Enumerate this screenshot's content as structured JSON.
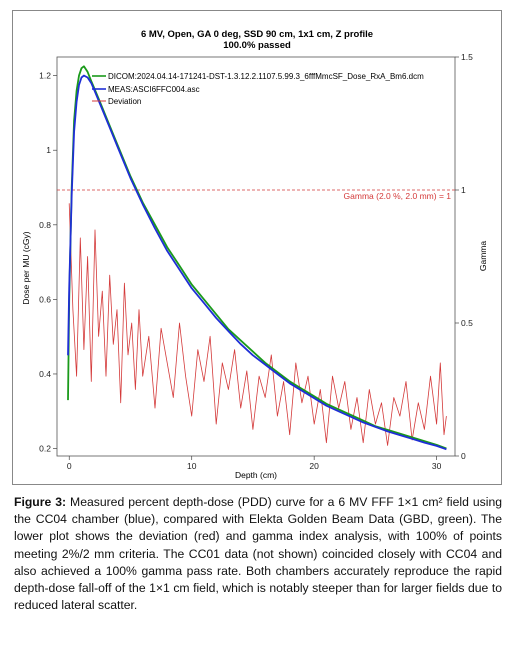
{
  "chart_data": {
    "type": "line",
    "title": "6 MV, Open, GA 0 deg, SSD 90 cm, 1x1 cm, Z profile",
    "subtitle": "100.0% passed",
    "xlabel": "Depth (cm)",
    "ylabel": "Dose per MU (cGy)",
    "y2label": "Gamma",
    "xlim": [
      -1,
      31.5
    ],
    "ylim": [
      0.18,
      1.25
    ],
    "y2lim": [
      0,
      1.5
    ],
    "xticks": [
      "0",
      "10",
      "20",
      "30"
    ],
    "yticks": [
      "0.2",
      "0.4",
      "0.6",
      "0.8",
      "1",
      "1.2"
    ],
    "y2ticks": [
      "0",
      "0.5",
      "1",
      "1.5"
    ],
    "grid": false,
    "legend_position": "top-left",
    "series": [
      {
        "name": "DICOM:2024.04.14-171241-DST-1.3.12.2.1107.5.99.3_6fffMmcSF_Dose_RxA_Bm6.dcm",
        "color": "#1a9a1a",
        "axis": "left",
        "x": [
          -0.1,
          0.0,
          0.2,
          0.4,
          0.6,
          0.8,
          1.0,
          1.2,
          1.5,
          1.8,
          2.0,
          2.5,
          3.0,
          3.5,
          4.0,
          5.0,
          6.0,
          7.0,
          8.0,
          9.0,
          10.0,
          11.0,
          12.0,
          13.0,
          14.0,
          15.0,
          16.0,
          17.0,
          18.0,
          19.0,
          20.0,
          21.0,
          22.0,
          23.0,
          24.0,
          25.0,
          26.0,
          27.0,
          28.0,
          29.0,
          30.0,
          30.8
        ],
        "y": [
          0.33,
          0.6,
          0.9,
          1.08,
          1.16,
          1.2,
          1.22,
          1.225,
          1.21,
          1.185,
          1.17,
          1.13,
          1.09,
          1.05,
          1.01,
          0.93,
          0.86,
          0.8,
          0.74,
          0.69,
          0.64,
          0.6,
          0.56,
          0.52,
          0.49,
          0.46,
          0.43,
          0.405,
          0.38,
          0.36,
          0.34,
          0.32,
          0.305,
          0.29,
          0.275,
          0.26,
          0.25,
          0.24,
          0.23,
          0.22,
          0.21,
          0.2
        ]
      },
      {
        "name": "MEAS:ASCI6FFC004.asc",
        "color": "#1f2fd6",
        "axis": "left",
        "x": [
          -0.1,
          0.0,
          0.2,
          0.4,
          0.6,
          0.8,
          1.0,
          1.2,
          1.5,
          1.8,
          2.0,
          2.5,
          3.0,
          3.5,
          4.0,
          5.0,
          6.0,
          7.0,
          8.0,
          9.0,
          10.0,
          11.0,
          12.0,
          13.0,
          14.0,
          15.0,
          16.0,
          17.0,
          18.0,
          19.0,
          20.0,
          21.0,
          22.0,
          23.0,
          24.0,
          25.0,
          26.0,
          27.0,
          28.0,
          29.0,
          30.0,
          30.8
        ],
        "y": [
          0.45,
          0.63,
          0.88,
          1.05,
          1.13,
          1.175,
          1.195,
          1.2,
          1.195,
          1.18,
          1.165,
          1.125,
          1.085,
          1.045,
          1.005,
          0.925,
          0.855,
          0.79,
          0.73,
          0.68,
          0.63,
          0.59,
          0.55,
          0.515,
          0.48,
          0.45,
          0.425,
          0.4,
          0.375,
          0.355,
          0.335,
          0.315,
          0.3,
          0.285,
          0.27,
          0.258,
          0.246,
          0.236,
          0.226,
          0.216,
          0.207,
          0.198
        ]
      },
      {
        "name": "Deviation",
        "color": "#d43a3a",
        "axis": "right",
        "x": [
          0.0,
          0.3,
          0.6,
          0.9,
          1.2,
          1.5,
          1.8,
          2.1,
          2.4,
          2.7,
          3.0,
          3.3,
          3.6,
          3.9,
          4.2,
          4.5,
          4.8,
          5.1,
          5.4,
          5.7,
          6.0,
          6.5,
          7.0,
          7.5,
          8.0,
          8.5,
          9.0,
          9.5,
          10.0,
          10.5,
          11.0,
          11.5,
          12.0,
          12.5,
          13.0,
          13.5,
          14.0,
          14.5,
          15.0,
          15.5,
          16.0,
          16.5,
          17.0,
          17.5,
          18.0,
          18.5,
          19.0,
          19.5,
          20.0,
          20.5,
          21.0,
          21.5,
          22.0,
          22.5,
          23.0,
          23.5,
          24.0,
          24.5,
          25.0,
          25.5,
          26.0,
          26.5,
          27.0,
          27.5,
          28.0,
          28.5,
          29.0,
          29.5,
          30.0,
          30.3,
          30.6,
          30.8
        ],
        "y": [
          0.95,
          0.55,
          0.3,
          0.82,
          0.4,
          0.75,
          0.28,
          0.85,
          0.45,
          0.62,
          0.3,
          0.68,
          0.42,
          0.55,
          0.2,
          0.65,
          0.38,
          0.5,
          0.25,
          0.55,
          0.3,
          0.45,
          0.18,
          0.48,
          0.35,
          0.22,
          0.5,
          0.3,
          0.15,
          0.4,
          0.28,
          0.45,
          0.12,
          0.35,
          0.25,
          0.4,
          0.18,
          0.32,
          0.1,
          0.3,
          0.22,
          0.38,
          0.15,
          0.28,
          0.08,
          0.35,
          0.2,
          0.3,
          0.12,
          0.25,
          0.05,
          0.3,
          0.18,
          0.28,
          0.1,
          0.22,
          0.05,
          0.25,
          0.12,
          0.2,
          0.04,
          0.22,
          0.15,
          0.28,
          0.06,
          0.2,
          0.1,
          0.3,
          0.12,
          0.35,
          0.08,
          0.15
        ]
      }
    ],
    "reference_line": {
      "label": "Gamma (2.0 %, 2.0 mm) = 1",
      "axis": "right",
      "value": 1,
      "color": "#d43a3a"
    }
  },
  "caption": {
    "label": "Figure 3:",
    "text": "Measured percent depth-dose (PDD) curve for a 6 MV FFF 1×1 cm² field using the CC04 chamber (blue), compared with Elekta Golden Beam Data (GBD, green). The lower plot shows the deviation (red) and gamma index analysis, with 100% of points meeting 2%/2 mm criteria. The CC01 data (not shown) coincided closely with CC04 and also achieved a 100% gamma pass rate. Both chambers accurately reproduce the rapid depth-dose fall-off of the 1×1 cm field, which is notably steeper than for larger fields due to reduced lateral scatter."
  }
}
